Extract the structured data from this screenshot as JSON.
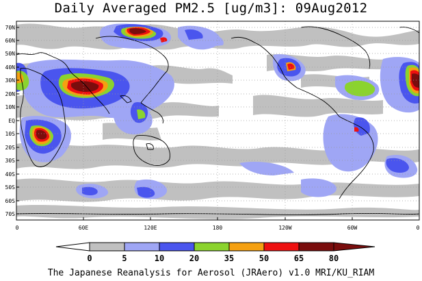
{
  "title": "Daily Averaged PM2.5 [ug/m3]: 09Aug2012",
  "footer": "The Japanese Reanalysis for Aerosol (JRAero) v1.0 MRI/KU_RIAM",
  "lat_labels": [
    "70N",
    "60N",
    "50N",
    "40N",
    "30N",
    "20N",
    "10N",
    "EQ",
    "10S",
    "20S",
    "30S",
    "40S",
    "50S",
    "60S",
    "70S"
  ],
  "lon_labels": [
    "0",
    "60E",
    "120E",
    "180",
    "120W",
    "60W",
    "0"
  ],
  "colorbar": {
    "levels": [
      "0",
      "5",
      "10",
      "20",
      "35",
      "50",
      "65",
      "80"
    ],
    "colors": [
      "#ffffff",
      "#c0c0c0",
      "#9fa6f5",
      "#4a55ee",
      "#8bd32e",
      "#f5a011",
      "#ee1010",
      "#7a0d0d"
    ]
  }
}
